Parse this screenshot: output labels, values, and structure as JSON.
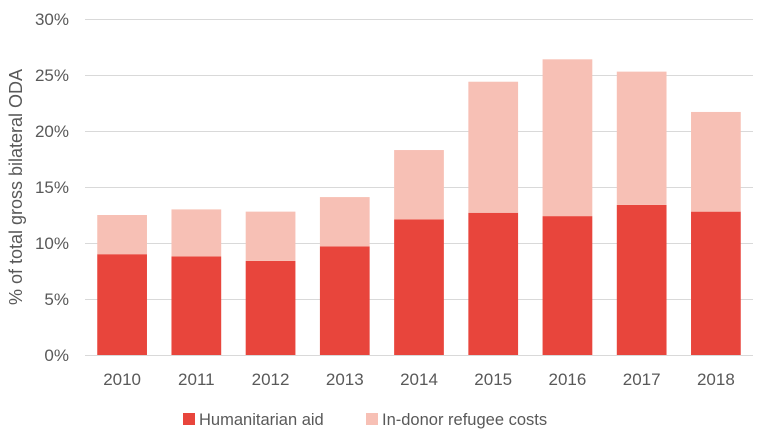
{
  "chart_data": {
    "type": "bar",
    "stacked": true,
    "categories": [
      "2010",
      "2011",
      "2012",
      "2013",
      "2014",
      "2015",
      "2016",
      "2017",
      "2018"
    ],
    "series": [
      {
        "name": "Humanitarian aid",
        "color": "#e8453c",
        "values": [
          9.0,
          8.8,
          8.4,
          9.7,
          12.1,
          12.7,
          12.4,
          13.4,
          12.8
        ]
      },
      {
        "name": "In-donor refugee costs",
        "color": "#f7c0b5",
        "values": [
          3.5,
          4.2,
          4.4,
          4.4,
          6.2,
          11.7,
          14.0,
          11.9,
          8.9
        ]
      }
    ],
    "ylabel": "% of total gross bilateral ODA",
    "xlabel": "",
    "ylim": [
      0,
      30
    ],
    "y_ticks": [
      "0%",
      "5%",
      "10%",
      "15%",
      "20%",
      "25%",
      "30%"
    ],
    "grid": "horizontal",
    "legend_position": "bottom"
  }
}
